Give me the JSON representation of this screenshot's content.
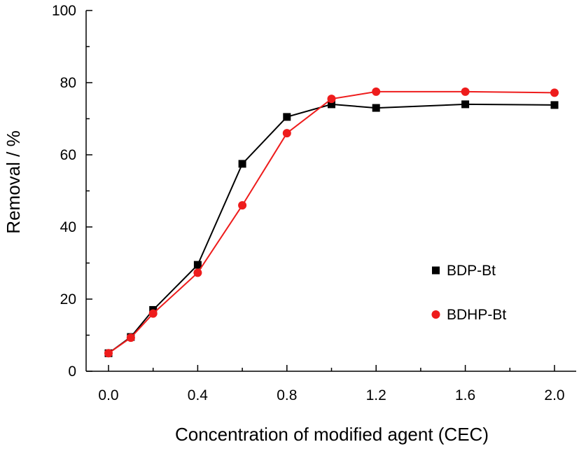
{
  "chart_data": {
    "type": "line",
    "xlabel": "Concentration of modified agent (CEC)",
    "ylabel": "Removal / %",
    "xlim": [
      0.0,
      2.0
    ],
    "ylim": [
      0,
      100
    ],
    "x_ticks": [
      "0.0",
      "0.4",
      "0.8",
      "1.2",
      "1.6",
      "2.0"
    ],
    "y_ticks": [
      "0",
      "20",
      "40",
      "60",
      "80",
      "100"
    ],
    "grid": false,
    "legend_position": "right",
    "series": [
      {
        "name": "BDP-Bt",
        "marker": "square",
        "color": "#000000",
        "x": [
          0.0,
          0.1,
          0.2,
          0.4,
          0.6,
          0.8,
          1.0,
          1.2,
          1.6,
          2.0
        ],
        "values": [
          5.0,
          9.5,
          17.0,
          29.5,
          57.5,
          70.5,
          74.0,
          73.0,
          74.0,
          73.8
        ]
      },
      {
        "name": "BDHP-Bt",
        "marker": "circle",
        "color": "#ee1c1c",
        "x": [
          0.0,
          0.1,
          0.2,
          0.4,
          0.6,
          0.8,
          1.0,
          1.2,
          1.6,
          2.0
        ],
        "values": [
          5.0,
          9.3,
          16.0,
          27.3,
          46.0,
          66.0,
          75.5,
          77.5,
          77.5,
          77.2
        ]
      }
    ]
  }
}
